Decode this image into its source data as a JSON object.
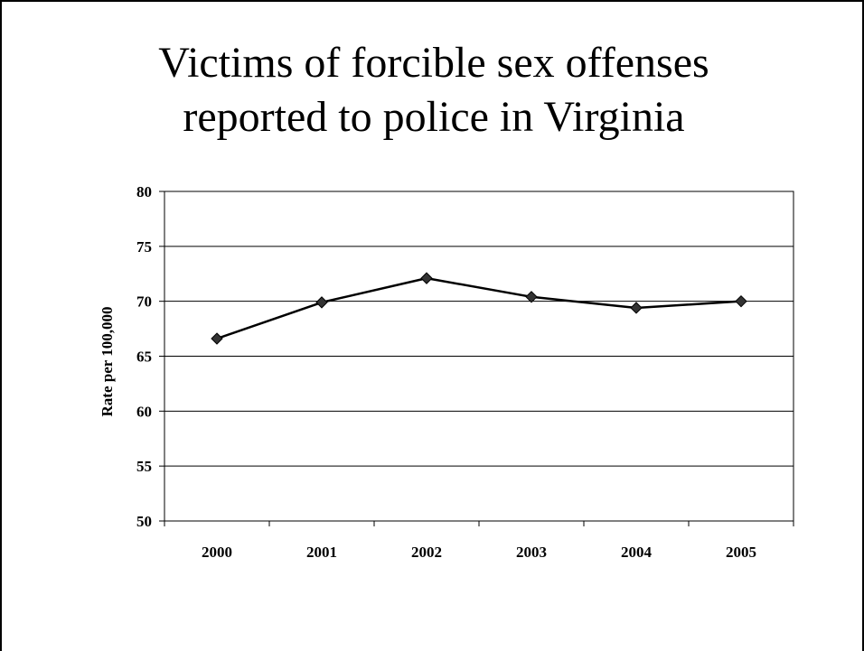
{
  "slide": {
    "title_line1": "Victims of forcible sex offenses",
    "title_line2": "reported to police in Virginia"
  },
  "chart_data": {
    "type": "line",
    "title": "",
    "xlabel": "",
    "ylabel": "Rate per 100,000",
    "categories": [
      "2000",
      "2001",
      "2002",
      "2003",
      "2004",
      "2005"
    ],
    "series": [
      {
        "values": [
          66.6,
          69.9,
          72.1,
          70.4,
          69.4,
          70.0
        ]
      }
    ],
    "ylim": [
      50,
      80
    ],
    "yticks": [
      50,
      55,
      60,
      65,
      70,
      75,
      80
    ],
    "grid": "horizontal",
    "legend": "none",
    "line_color": "#000000",
    "marker": "diamond",
    "marker_color": "#333333"
  }
}
